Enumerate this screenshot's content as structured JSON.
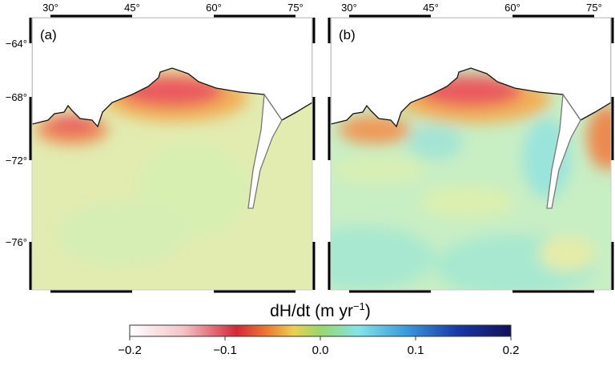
{
  "panels": [
    {
      "label": "(a)",
      "lon_ticks": [
        "30°",
        "45°",
        "60°",
        "75°"
      ],
      "lat_ticks": [
        "−64°",
        "−68°",
        "−72°",
        "−76°"
      ]
    },
    {
      "label": "(b)",
      "lon_ticks": [
        "30°",
        "45°",
        "60°",
        "75°"
      ]
    }
  ],
  "colorbar": {
    "title": "dH/dt (m yr",
    "title_sup": "−1",
    "title_end": ")",
    "ticks": [
      "−0.2",
      "−0.1",
      "0.0",
      "0.1",
      "0.2"
    ],
    "range": [
      -0.2,
      0.2
    ],
    "colors": [
      "#ffffff",
      "#f4b9bf",
      "#d8283a",
      "#f08a30",
      "#e8dc50",
      "#a8dc70",
      "#80e0e0",
      "#3aa0e0",
      "#1a40b0",
      "#101060"
    ]
  },
  "colors": {
    "ocean_a": "#e2ebb0",
    "ocean_b": "#c9eec0",
    "coast_red": "#ea5a5e"
  }
}
